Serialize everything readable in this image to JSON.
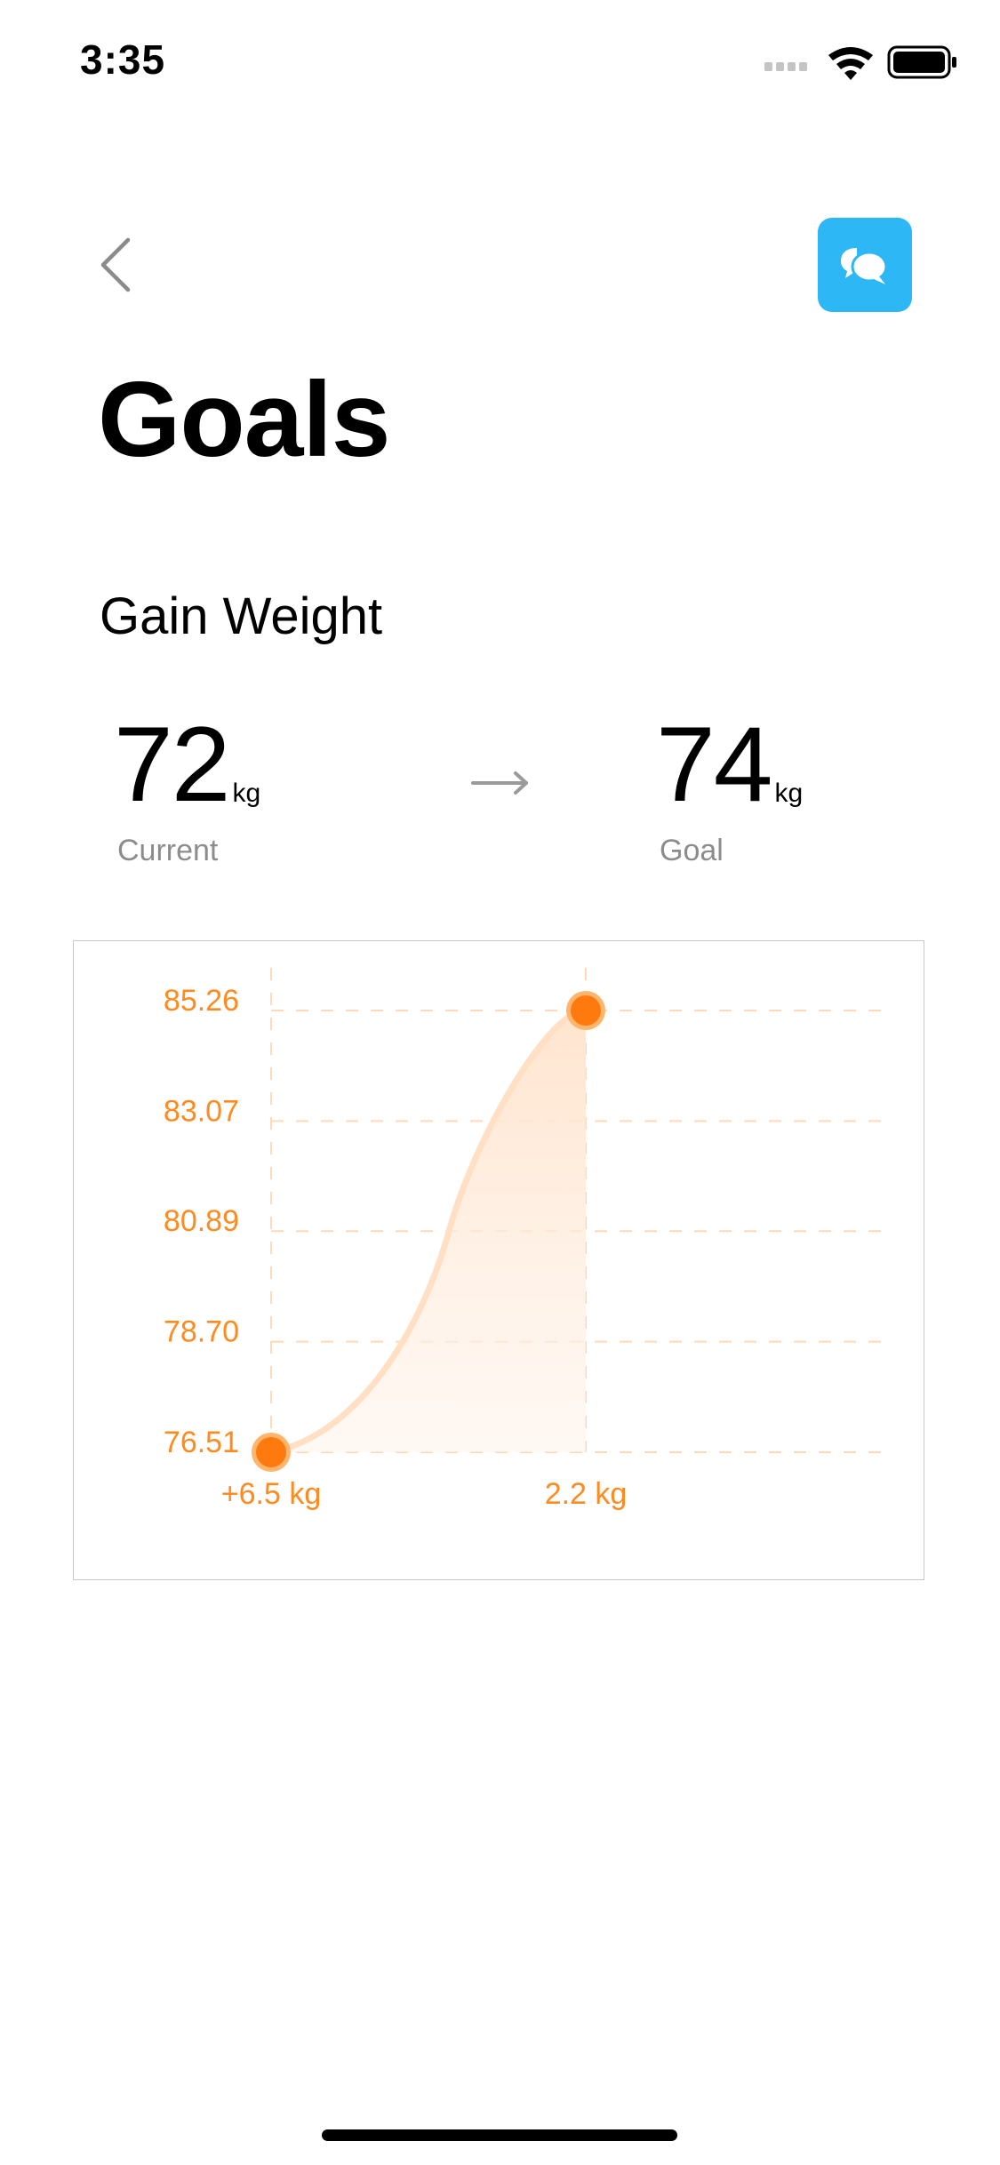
{
  "status_bar": {
    "time": "3:35"
  },
  "header": {
    "title": "Goals"
  },
  "goal": {
    "type": "Gain Weight",
    "current": {
      "value": "72",
      "unit": "kg",
      "label": "Current"
    },
    "target": {
      "value": "74",
      "unit": "kg",
      "label": "Goal"
    }
  },
  "colors": {
    "accent": "#FF8A1F",
    "chat_button": "#2DB7F5",
    "grid": "#FFD9B8",
    "curve": "#FFE0C4",
    "label_gray": "#8c8c8c"
  },
  "chart_data": {
    "type": "area",
    "x": [
      "+6.5 kg",
      "2.2 kg"
    ],
    "y": [
      76.51,
      85.26
    ],
    "y_ticks": [
      "85.26",
      "83.07",
      "80.89",
      "78.70",
      "76.51"
    ],
    "ylim": [
      76.51,
      85.26
    ],
    "grid": true,
    "title": "",
    "xlabel": "",
    "ylabel": ""
  }
}
